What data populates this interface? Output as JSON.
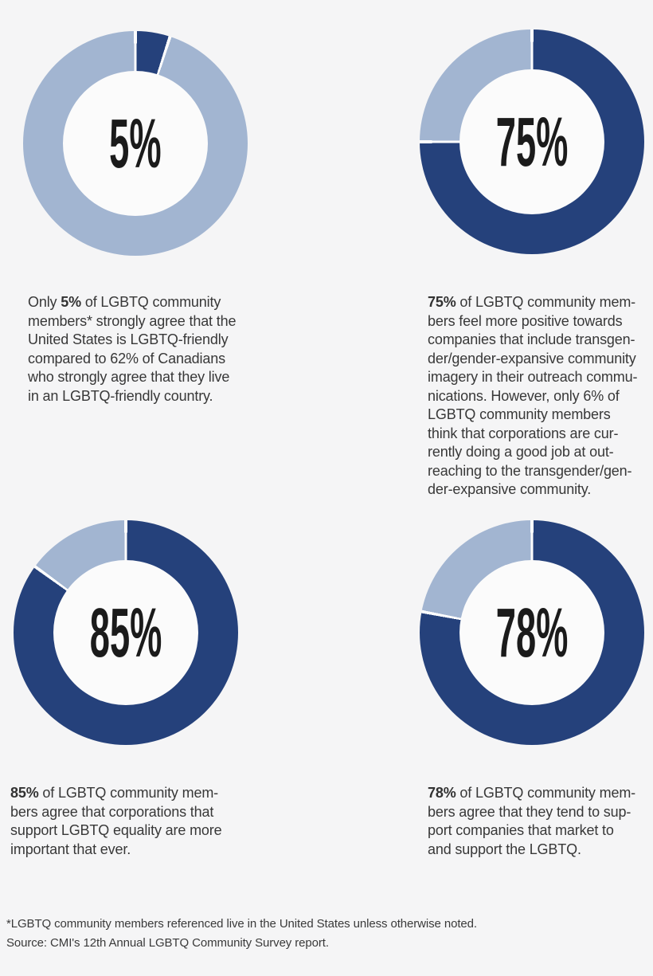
{
  "theme": {
    "dark_blue": "#25417B",
    "light_blue": "#A2B5D1",
    "gap_white": "#FDFDFD",
    "hole_color": "#FBFBFB",
    "page_background": "#F5F5F6",
    "body_text": "#383838",
    "label_text": "#1B1B1B"
  },
  "chart_data": [
    {
      "type": "pie",
      "donut": true,
      "center_label": "5%",
      "values": [
        5,
        95
      ],
      "colors": [
        "#25417B",
        "#A2B5D1"
      ],
      "start_angle_deg": 0,
      "direction": "clockwise",
      "legend": "none"
    },
    {
      "type": "pie",
      "donut": true,
      "center_label": "75%",
      "values": [
        75,
        25
      ],
      "colors": [
        "#25417B",
        "#A2B5D1"
      ],
      "start_angle_deg": 0,
      "direction": "clockwise",
      "legend": "none"
    },
    {
      "type": "pie",
      "donut": true,
      "center_label": "85%",
      "values": [
        85,
        15
      ],
      "colors": [
        "#25417B",
        "#A2B5D1"
      ],
      "start_angle_deg": 0,
      "direction": "clockwise",
      "legend": "none"
    },
    {
      "type": "pie",
      "donut": true,
      "center_label": "78%",
      "values": [
        78,
        22
      ],
      "colors": [
        "#25417B",
        "#A2B5D1"
      ],
      "start_angle_deg": 0,
      "direction": "clockwise",
      "legend": "none"
    }
  ],
  "panels": [
    {
      "center_label": "5%",
      "desc_prefix": "Only ",
      "desc_bold": "5%",
      "desc_rest": " of LGBTQ community\nmembers* strongly agree that the\nUnited States is LGBTQ-friendly\ncompared to 62% of Canadians\nwho strongly agree that they live\nin an LGBTQ-friendly country."
    },
    {
      "center_label": "75%",
      "desc_prefix": "",
      "desc_bold": "75%",
      "desc_rest": " of LGBTQ community mem-\nbers feel more positive towards\ncompanies that include transgen-\nder/gender-expansive community\nimagery in their outreach commu-\nnications. However, only 6% of\nLGBTQ community members\nthink that corporations are cur-\nrently doing a good job at out-\nreaching to the transgender/gen-\nder-expansive community."
    },
    {
      "center_label": "85%",
      "desc_prefix": "",
      "desc_bold": "85%",
      "desc_rest": " of LGBTQ community mem-\nbers agree that corporations that\nsupport LGBTQ equality are more\nimportant that ever."
    },
    {
      "center_label": "78%",
      "desc_prefix": "",
      "desc_bold": "78%",
      "desc_rest": " of LGBTQ community mem-\nbers agree that they tend to sup-\nport companies that market to\nand support the LGBTQ."
    }
  ],
  "footer": {
    "line1": "*LGBTQ community members referenced live in the United States unless otherwise noted.",
    "line2": "Source: CMI's 12th Annual LGBTQ Community Survey report."
  }
}
